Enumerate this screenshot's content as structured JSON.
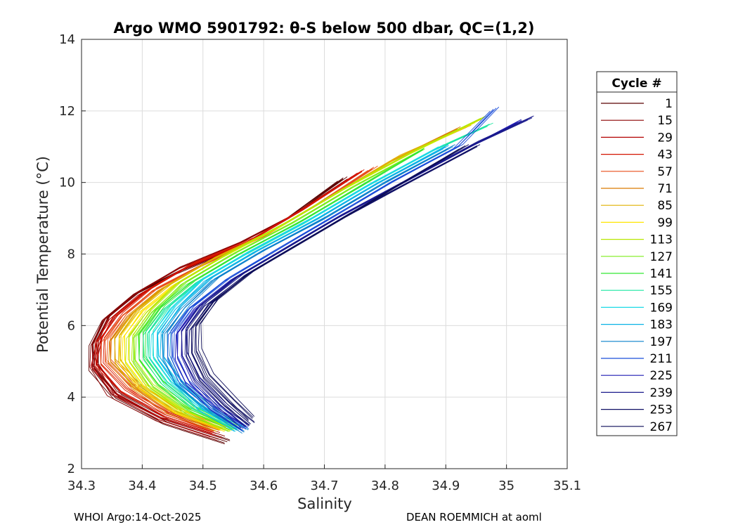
{
  "chart_data": {
    "type": "line",
    "title": "Argo WMO 5901792: θ-S below 500 dbar,  QC=(1,2)",
    "xlabel": "Salinity",
    "ylabel": "Potential Temperature (°C)",
    "xlim": [
      34.3,
      35.1
    ],
    "ylim": [
      2,
      14
    ],
    "xticks": [
      "34.3",
      "34.4",
      "34.5",
      "34.6",
      "34.7",
      "34.8",
      "34.9",
      "35",
      "35.1"
    ],
    "yticks": [
      "2",
      "4",
      "6",
      "8",
      "10",
      "12",
      "14"
    ],
    "grid": true,
    "legend_title": "Cycle #",
    "legend_position": "right",
    "series": [
      {
        "name": "1",
        "color": "#5a0000",
        "points": [
          [
            34.54,
            2.75
          ],
          [
            34.44,
            3.3
          ],
          [
            34.36,
            4.0
          ],
          [
            34.32,
            4.8
          ],
          [
            34.32,
            5.5
          ],
          [
            34.34,
            6.2
          ],
          [
            34.39,
            6.9
          ],
          [
            34.46,
            7.5
          ],
          [
            34.56,
            8.2
          ],
          [
            34.64,
            9.0
          ],
          [
            34.73,
            10.1
          ]
        ]
      },
      {
        "name": "15",
        "color": "#8b0000",
        "points": [
          [
            34.53,
            2.85
          ],
          [
            34.43,
            3.4
          ],
          [
            34.35,
            4.1
          ],
          [
            34.32,
            4.9
          ],
          [
            34.32,
            5.5
          ],
          [
            34.34,
            6.2
          ],
          [
            34.39,
            6.9
          ],
          [
            34.46,
            7.6
          ],
          [
            34.56,
            8.3
          ],
          [
            34.65,
            9.1
          ],
          [
            34.74,
            10.1
          ]
        ]
      },
      {
        "name": "29",
        "color": "#b30000",
        "points": [
          [
            34.52,
            2.95
          ],
          [
            34.43,
            3.45
          ],
          [
            34.36,
            4.1
          ],
          [
            34.32,
            4.9
          ],
          [
            34.33,
            5.6
          ],
          [
            34.35,
            6.2
          ],
          [
            34.4,
            6.9
          ],
          [
            34.47,
            7.6
          ],
          [
            34.57,
            8.3
          ],
          [
            34.66,
            9.2
          ],
          [
            34.75,
            10.2
          ]
        ]
      },
      {
        "name": "43",
        "color": "#d41500",
        "points": [
          [
            34.52,
            3.05
          ],
          [
            34.44,
            3.5
          ],
          [
            34.37,
            4.2
          ],
          [
            34.33,
            4.9
          ],
          [
            34.33,
            5.6
          ],
          [
            34.36,
            6.3
          ],
          [
            34.41,
            7.0
          ],
          [
            34.48,
            7.7
          ],
          [
            34.58,
            8.4
          ],
          [
            34.67,
            9.3
          ],
          [
            34.76,
            10.3
          ]
        ]
      },
      {
        "name": "57",
        "color": "#e84e1a",
        "points": [
          [
            34.52,
            3.1
          ],
          [
            34.44,
            3.6
          ],
          [
            34.38,
            4.3
          ],
          [
            34.34,
            5.0
          ],
          [
            34.34,
            5.6
          ],
          [
            34.37,
            6.3
          ],
          [
            34.42,
            7.0
          ],
          [
            34.5,
            7.7
          ],
          [
            34.6,
            8.5
          ],
          [
            34.69,
            9.4
          ],
          [
            34.78,
            10.4
          ]
        ]
      },
      {
        "name": "71",
        "color": "#d97a00",
        "points": [
          [
            34.53,
            3.1
          ],
          [
            34.45,
            3.6
          ],
          [
            34.39,
            4.3
          ],
          [
            34.35,
            5.0
          ],
          [
            34.35,
            5.6
          ],
          [
            34.38,
            6.3
          ],
          [
            34.43,
            7.0
          ],
          [
            34.51,
            7.8
          ],
          [
            34.61,
            8.6
          ],
          [
            34.71,
            9.6
          ],
          [
            34.81,
            10.6
          ],
          [
            34.92,
            11.5
          ]
        ]
      },
      {
        "name": "85",
        "color": "#e0b000",
        "points": [
          [
            34.53,
            3.1
          ],
          [
            34.46,
            3.6
          ],
          [
            34.39,
            4.3
          ],
          [
            34.36,
            5.0
          ],
          [
            34.36,
            5.7
          ],
          [
            34.39,
            6.4
          ],
          [
            34.44,
            7.1
          ],
          [
            34.52,
            7.9
          ],
          [
            34.62,
            8.7
          ],
          [
            34.72,
            9.7
          ],
          [
            34.82,
            10.7
          ],
          [
            34.94,
            11.6
          ]
        ]
      },
      {
        "name": "99",
        "color": "#ffe600",
        "points": [
          [
            34.54,
            3.1
          ],
          [
            34.46,
            3.6
          ],
          [
            34.4,
            4.3
          ],
          [
            34.37,
            5.0
          ],
          [
            34.37,
            5.7
          ],
          [
            34.4,
            6.4
          ],
          [
            34.45,
            7.1
          ],
          [
            34.53,
            7.9
          ],
          [
            34.63,
            8.8
          ],
          [
            34.73,
            9.8
          ],
          [
            34.84,
            10.8
          ],
          [
            34.95,
            11.7
          ]
        ]
      },
      {
        "name": "113",
        "color": "#b8e600",
        "points": [
          [
            34.55,
            3.1
          ],
          [
            34.47,
            3.6
          ],
          [
            34.41,
            4.3
          ],
          [
            34.38,
            5.0
          ],
          [
            34.38,
            5.7
          ],
          [
            34.41,
            6.4
          ],
          [
            34.46,
            7.2
          ],
          [
            34.54,
            8.0
          ],
          [
            34.64,
            8.9
          ],
          [
            34.74,
            9.9
          ],
          [
            34.85,
            10.9
          ],
          [
            34.96,
            11.8
          ]
        ]
      },
      {
        "name": "127",
        "color": "#7ded1a",
        "points": [
          [
            34.55,
            3.1
          ],
          [
            34.48,
            3.6
          ],
          [
            34.42,
            4.3
          ],
          [
            34.39,
            5.0
          ],
          [
            34.39,
            5.7
          ],
          [
            34.42,
            6.4
          ],
          [
            34.47,
            7.2
          ],
          [
            34.55,
            8.0
          ],
          [
            34.65,
            8.9
          ],
          [
            34.75,
            9.9
          ],
          [
            34.86,
            10.9
          ]
        ]
      },
      {
        "name": "141",
        "color": "#33e633",
        "points": [
          [
            34.55,
            3.15
          ],
          [
            34.48,
            3.7
          ],
          [
            34.43,
            4.4
          ],
          [
            34.4,
            5.1
          ],
          [
            34.4,
            5.8
          ],
          [
            34.43,
            6.5
          ],
          [
            34.48,
            7.2
          ],
          [
            34.56,
            8.0
          ],
          [
            34.66,
            8.9
          ],
          [
            34.76,
            9.9
          ],
          [
            34.86,
            10.9
          ]
        ]
      },
      {
        "name": "155",
        "color": "#19e6a0",
        "points": [
          [
            34.56,
            3.15
          ],
          [
            34.49,
            3.7
          ],
          [
            34.44,
            4.4
          ],
          [
            34.41,
            5.1
          ],
          [
            34.41,
            5.8
          ],
          [
            34.44,
            6.5
          ],
          [
            34.49,
            7.2
          ],
          [
            34.57,
            8.0
          ],
          [
            34.67,
            8.9
          ],
          [
            34.77,
            9.9
          ],
          [
            34.88,
            10.9
          ],
          [
            34.97,
            11.6
          ]
        ]
      },
      {
        "name": "169",
        "color": "#1ad9e6",
        "points": [
          [
            34.56,
            3.1
          ],
          [
            34.5,
            3.7
          ],
          [
            34.45,
            4.4
          ],
          [
            34.42,
            5.1
          ],
          [
            34.42,
            5.8
          ],
          [
            34.45,
            6.5
          ],
          [
            34.5,
            7.3
          ],
          [
            34.58,
            8.1
          ],
          [
            34.68,
            9.0
          ],
          [
            34.78,
            10.0
          ],
          [
            34.89,
            11.0
          ]
        ]
      },
      {
        "name": "183",
        "color": "#0ab3e6",
        "points": [
          [
            34.56,
            3.1
          ],
          [
            34.5,
            3.7
          ],
          [
            34.46,
            4.4
          ],
          [
            34.43,
            5.1
          ],
          [
            34.43,
            5.8
          ],
          [
            34.46,
            6.5
          ],
          [
            34.51,
            7.3
          ],
          [
            34.59,
            8.1
          ],
          [
            34.69,
            9.0
          ],
          [
            34.79,
            10.0
          ],
          [
            34.9,
            11.0
          ]
        ]
      },
      {
        "name": "197",
        "color": "#0a80cc",
        "points": [
          [
            34.57,
            3.05
          ],
          [
            34.51,
            3.7
          ],
          [
            34.46,
            4.4
          ],
          [
            34.44,
            5.1
          ],
          [
            34.44,
            5.8
          ],
          [
            34.47,
            6.5
          ],
          [
            34.52,
            7.3
          ],
          [
            34.6,
            8.1
          ],
          [
            34.7,
            9.0
          ],
          [
            34.8,
            10.0
          ],
          [
            34.91,
            11.0
          ]
        ]
      },
      {
        "name": "211",
        "color": "#1a4dd9",
        "points": [
          [
            34.57,
            3.1
          ],
          [
            34.52,
            3.7
          ],
          [
            34.47,
            4.4
          ],
          [
            34.45,
            5.1
          ],
          [
            34.45,
            5.8
          ],
          [
            34.48,
            6.5
          ],
          [
            34.54,
            7.3
          ],
          [
            34.62,
            8.1
          ],
          [
            34.71,
            9.0
          ],
          [
            34.81,
            10.0
          ],
          [
            34.92,
            11.0
          ],
          [
            34.98,
            12.05
          ]
        ]
      },
      {
        "name": "225",
        "color": "#1f1ab3",
        "points": [
          [
            34.57,
            3.15
          ],
          [
            34.52,
            3.7
          ],
          [
            34.48,
            4.4
          ],
          [
            34.46,
            5.1
          ],
          [
            34.46,
            5.8
          ],
          [
            34.49,
            6.5
          ],
          [
            34.55,
            7.3
          ],
          [
            34.63,
            8.1
          ],
          [
            34.72,
            9.0
          ],
          [
            34.83,
            10.0
          ],
          [
            34.94,
            11.0
          ],
          [
            35.02,
            11.7
          ]
        ]
      },
      {
        "name": "239",
        "color": "#1a1a8c",
        "points": [
          [
            34.57,
            3.2
          ],
          [
            34.53,
            3.8
          ],
          [
            34.49,
            4.5
          ],
          [
            34.47,
            5.2
          ],
          [
            34.47,
            5.9
          ],
          [
            34.5,
            6.6
          ],
          [
            34.56,
            7.4
          ],
          [
            34.64,
            8.2
          ],
          [
            34.73,
            9.1
          ],
          [
            34.84,
            10.1
          ],
          [
            34.95,
            11.1
          ],
          [
            35.04,
            11.8
          ]
        ]
      },
      {
        "name": "253",
        "color": "#101066",
        "points": [
          [
            34.58,
            3.25
          ],
          [
            34.54,
            3.8
          ],
          [
            34.5,
            4.5
          ],
          [
            34.48,
            5.2
          ],
          [
            34.48,
            5.9
          ],
          [
            34.51,
            6.6
          ],
          [
            34.57,
            7.4
          ],
          [
            34.65,
            8.2
          ],
          [
            34.74,
            9.1
          ],
          [
            34.85,
            10.1
          ],
          [
            34.95,
            11.0
          ]
        ]
      },
      {
        "name": "267",
        "color": "#0d0d59",
        "points": [
          [
            34.58,
            3.4
          ],
          [
            34.55,
            3.9
          ],
          [
            34.51,
            4.6
          ],
          [
            34.49,
            5.3
          ],
          [
            34.49,
            6.0
          ],
          [
            34.52,
            6.7
          ],
          [
            34.58,
            7.5
          ],
          [
            34.66,
            8.3
          ],
          [
            34.75,
            9.2
          ],
          [
            34.85,
            10.2
          ],
          [
            34.93,
            11.0
          ]
        ]
      }
    ],
    "footer_left": "WHOI Argo:14-Oct-2025",
    "footer_right": "DEAN ROEMMICH at aoml"
  }
}
